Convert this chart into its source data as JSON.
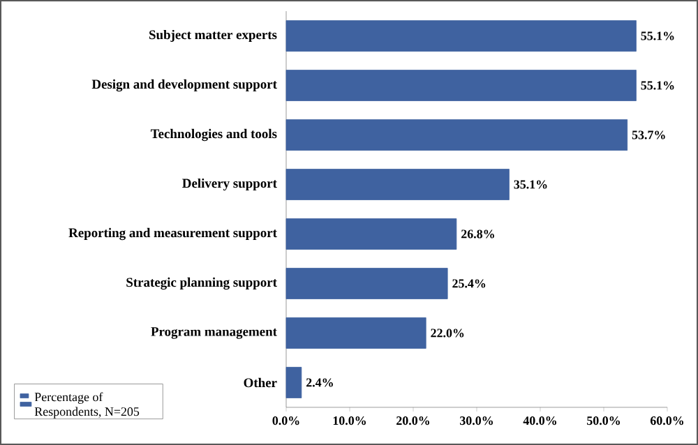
{
  "chart_data": {
    "type": "bar",
    "orientation": "horizontal",
    "categories": [
      "Subject matter experts",
      "Design and development support",
      "Technologies and tools",
      "Delivery support",
      "Reporting and measurement support",
      "Strategic planning support",
      "Program management",
      "Other"
    ],
    "series": [
      {
        "name": "Percentage of Respondents, N=205",
        "color": "#3f62a0",
        "values": [
          55.1,
          55.1,
          53.7,
          35.1,
          26.8,
          25.4,
          22.0,
          2.4
        ],
        "value_labels": [
          "55.1%",
          "55.1%",
          "53.7%",
          "35.1%",
          "26.8%",
          "25.4%",
          "22.0%",
          "2.4%"
        ]
      }
    ],
    "xlim": [
      0,
      60
    ],
    "xticks": [
      {
        "value": 0,
        "label": "0.0%"
      },
      {
        "value": 10,
        "label": "10.0%"
      },
      {
        "value": 20,
        "label": "20.0%"
      },
      {
        "value": 30,
        "label": "30.0%"
      },
      {
        "value": 40,
        "label": "40.0%"
      },
      {
        "value": 50,
        "label": "50.0%"
      },
      {
        "value": 60,
        "label": "60.0%"
      }
    ],
    "legend": "bottom left"
  }
}
